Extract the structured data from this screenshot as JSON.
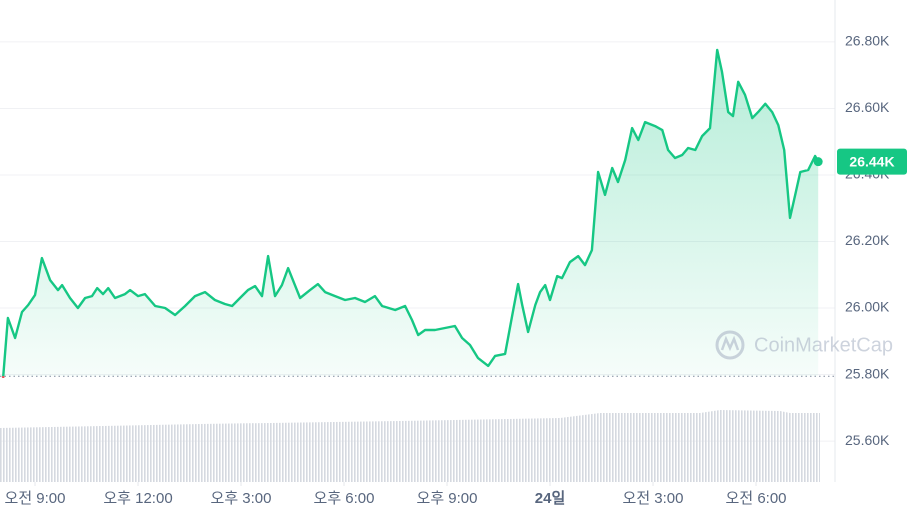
{
  "chart_data": {
    "type": "line",
    "x": [
      8.07,
      8.21,
      8.42,
      8.62,
      8.8,
      9.0,
      9.2,
      9.44,
      9.67,
      9.79,
      10.02,
      10.25,
      10.46,
      10.66,
      10.81,
      10.98,
      11.13,
      11.33,
      11.62,
      11.77,
      12.0,
      12.2,
      12.5,
      12.79,
      13.08,
      13.37,
      13.66,
      13.95,
      14.24,
      14.53,
      14.74,
      14.97,
      15.2,
      15.41,
      15.61,
      15.79,
      15.99,
      16.19,
      16.37,
      16.57,
      16.72,
      17.01,
      17.24,
      17.45,
      17.74,
      18.03,
      18.32,
      18.61,
      18.9,
      19.11,
      19.49,
      19.78,
      19.98,
      20.16,
      20.36,
      20.65,
      20.94,
      21.23,
      21.44,
      21.67,
      21.9,
      22.2,
      22.4,
      22.69,
      22.9,
      23.07,
      23.19,
      23.36,
      23.57,
      23.71,
      23.86,
      24.0,
      24.21,
      24.35,
      24.58,
      24.82,
      25.02,
      25.22,
      25.4,
      25.6,
      25.81,
      25.98,
      26.19,
      26.39,
      26.57,
      26.77,
      27.06,
      27.27,
      27.44,
      27.64,
      27.85,
      28.02,
      28.23,
      28.43,
      28.66,
      28.87,
      29.01,
      29.19,
      29.33,
      29.48,
      29.68,
      29.89,
      30.06,
      30.27,
      30.47,
      30.65,
      30.82,
      30.99,
      31.14,
      31.29,
      31.52,
      31.72,
      31.81
    ],
    "series": [
      {
        "name": "Price",
        "color": "#16c784",
        "values": [
          25790,
          25970,
          25910,
          25988,
          26009,
          26039,
          26150,
          26084,
          26054,
          26069,
          26030,
          26000,
          26030,
          26036,
          26060,
          26042,
          26060,
          26030,
          26042,
          26054,
          26036,
          26042,
          26006,
          26000,
          25979,
          26006,
          26036,
          26048,
          26024,
          26012,
          26006,
          26030,
          26054,
          26066,
          26036,
          26156,
          26036,
          26069,
          26120,
          26069,
          26030,
          26054,
          26072,
          26048,
          26036,
          26024,
          26030,
          26018,
          26036,
          26006,
          25994,
          26006,
          25964,
          25919,
          25934,
          25934,
          25940,
          25946,
          25910,
          25889,
          25850,
          25826,
          25856,
          25862,
          25979,
          26072,
          26009,
          25928,
          26009,
          26048,
          26069,
          26024,
          26096,
          26090,
          26138,
          26156,
          26129,
          26174,
          26409,
          26340,
          26421,
          26379,
          26445,
          26541,
          26505,
          26559,
          26547,
          26535,
          26475,
          26451,
          26460,
          26481,
          26475,
          26517,
          26541,
          26776,
          26710,
          26589,
          26577,
          26680,
          26641,
          26571,
          26589,
          26614,
          26589,
          26550,
          26475,
          26271,
          26340,
          26409,
          26415,
          26457,
          26440
        ]
      }
    ],
    "negative_color": "#ea3943",
    "reference_line": 25795,
    "current_price": {
      "value": 26440,
      "label": "26.44K"
    },
    "xlim": [
      7.98,
      32.3
    ],
    "xticks": [
      {
        "value": 9,
        "label": "오전 9:00"
      },
      {
        "value": 12,
        "label": "오후 12:00"
      },
      {
        "value": 15,
        "label": "오후 3:00"
      },
      {
        "value": 18,
        "label": "오후 6:00"
      },
      {
        "value": 21,
        "label": "오후 9:00"
      },
      {
        "value": 24,
        "label": "24일"
      },
      {
        "value": 27,
        "label": "오전 3:00"
      },
      {
        "value": 30,
        "label": "오전 6:00"
      }
    ],
    "ylim": [
      25477,
      26926
    ],
    "yticks": [
      {
        "value": 25600,
        "label": "25.60K"
      },
      {
        "value": 25800,
        "label": "25.80K"
      },
      {
        "value": 26000,
        "label": "26.00K"
      },
      {
        "value": 26200,
        "label": "26.20K"
      },
      {
        "value": 26400,
        "label": "26.40K"
      },
      {
        "value": 26600,
        "label": "26.60K"
      },
      {
        "value": 26800,
        "label": "26.80K"
      }
    ],
    "grid": true,
    "watermark": "CoinMarketCap"
  }
}
